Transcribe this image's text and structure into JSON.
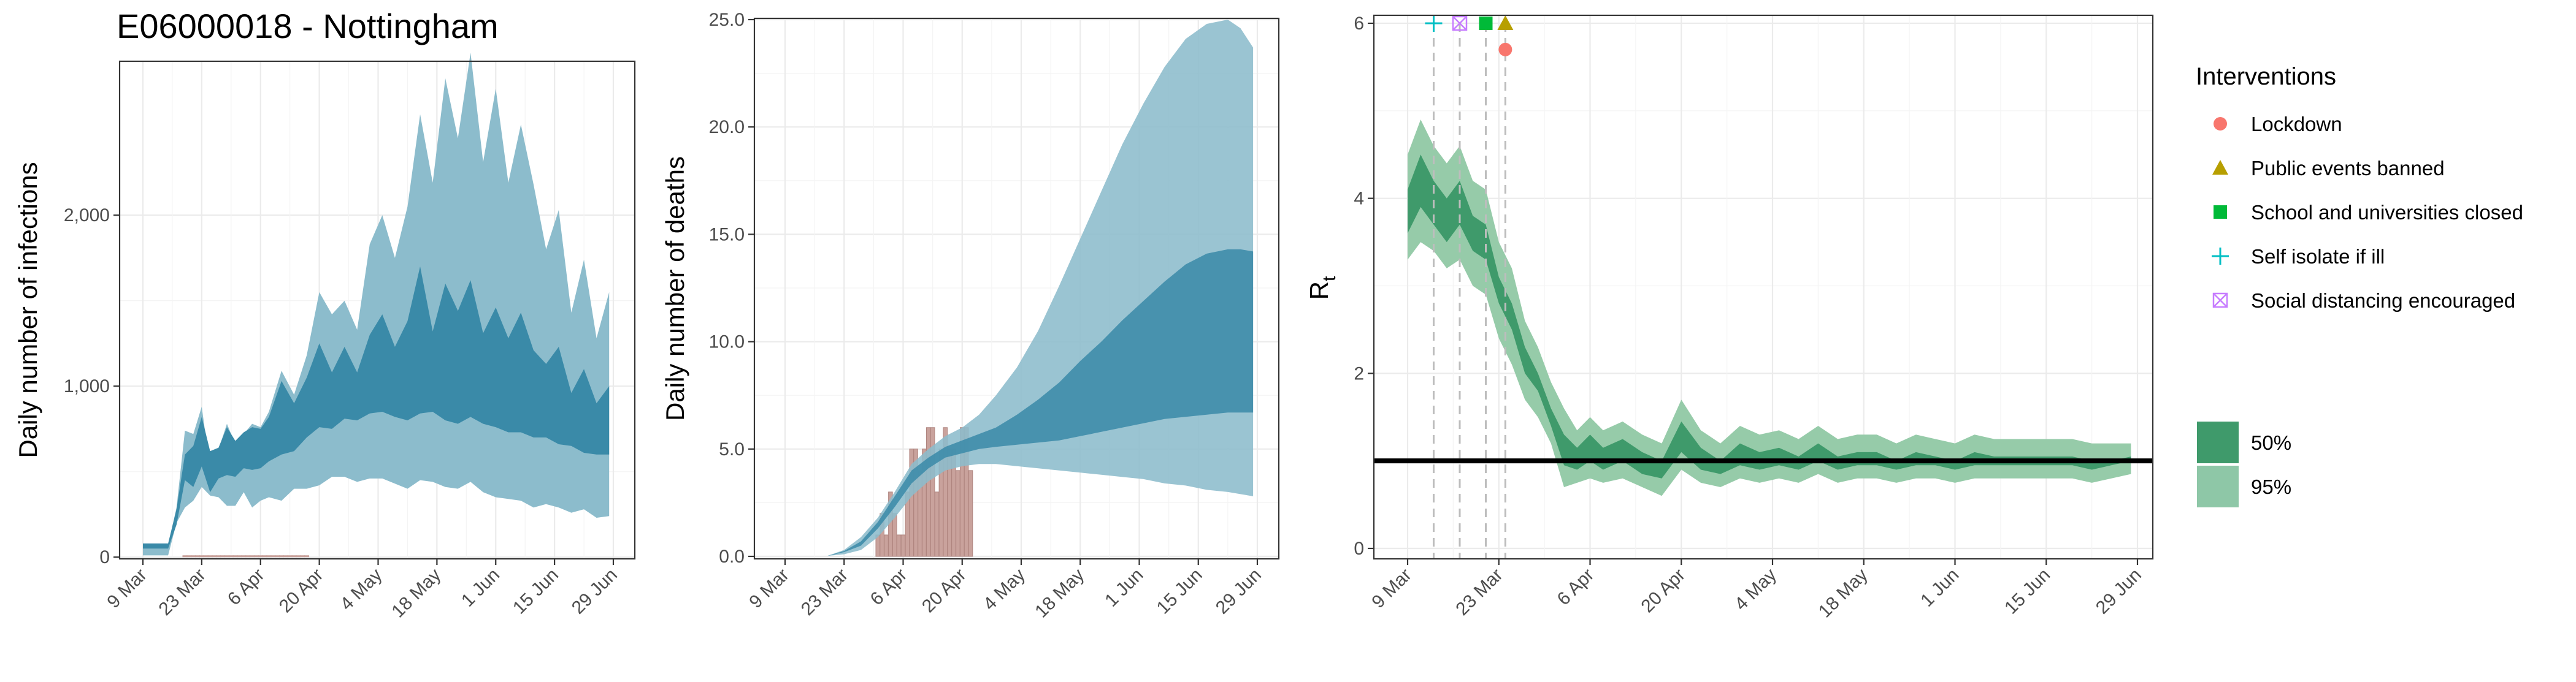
{
  "figure_title": "E06000018 - Nottingham",
  "chart_data": [
    {
      "type": "area",
      "ylabel": "Daily number of infections",
      "xlabel": "",
      "x_ticks": [
        "9 Mar",
        "23 Mar",
        "6 Apr",
        "20 Apr",
        "4 May",
        "18 May",
        "1 Jun",
        "15 Jun",
        "29 Jun"
      ],
      "y_ticks": [
        "0",
        "1,000",
        "2,000"
      ],
      "ylim": [
        0,
        2900
      ],
      "grid": true,
      "series": [
        {
          "x": [
            0,
            3,
            6,
            8,
            10,
            12,
            14,
            16,
            18,
            20,
            22,
            24,
            26,
            28,
            30,
            33,
            36,
            39,
            42,
            45,
            48,
            51,
            54,
            57,
            60,
            63,
            66,
            69,
            72,
            75,
            78,
            81,
            84,
            87,
            90,
            93,
            96,
            99,
            102,
            105,
            108,
            111
          ],
          "lower95": [
            10,
            10,
            10,
            200,
            290,
            330,
            410,
            360,
            350,
            300,
            300,
            380,
            290,
            330,
            350,
            330,
            400,
            400,
            420,
            470,
            470,
            440,
            460,
            460,
            430,
            400,
            450,
            440,
            410,
            400,
            440,
            380,
            350,
            340,
            330,
            290,
            310,
            290,
            260,
            280,
            230,
            240
          ],
          "upper95": [
            70,
            70,
            70,
            290,
            740,
            720,
            880,
            520,
            630,
            780,
            660,
            720,
            780,
            760,
            850,
            1090,
            950,
            1180,
            1550,
            1420,
            1500,
            1330,
            1830,
            2000,
            1750,
            2050,
            2590,
            2190,
            2800,
            2450,
            2950,
            2310,
            2740,
            2190,
            2530,
            2180,
            1800,
            2030,
            1430,
            1740,
            1280,
            1550
          ]
        },
        {
          "x": [
            0,
            3,
            6,
            8,
            10,
            12,
            14,
            16,
            18,
            20,
            22,
            24,
            26,
            28,
            30,
            33,
            36,
            39,
            42,
            45,
            48,
            51,
            54,
            57,
            60,
            63,
            66,
            69,
            72,
            75,
            78,
            81,
            84,
            87,
            90,
            93,
            96,
            99,
            102,
            105,
            108,
            111
          ],
          "lower50": [
            50,
            50,
            50,
            190,
            450,
            410,
            530,
            380,
            460,
            480,
            470,
            520,
            510,
            520,
            560,
            600,
            620,
            700,
            760,
            750,
            810,
            800,
            840,
            850,
            820,
            800,
            840,
            850,
            800,
            780,
            820,
            780,
            760,
            730,
            730,
            700,
            700,
            660,
            650,
            610,
            600,
            600
          ],
          "upper50": [
            80,
            80,
            80,
            280,
            600,
            650,
            820,
            620,
            640,
            760,
            680,
            730,
            760,
            750,
            820,
            1030,
            900,
            1050,
            1250,
            1080,
            1230,
            1080,
            1300,
            1420,
            1230,
            1380,
            1700,
            1320,
            1600,
            1440,
            1620,
            1310,
            1460,
            1280,
            1430,
            1210,
            1130,
            1230,
            960,
            1100,
            900,
            1000
          ]
        },
        {
          "name": "observed",
          "type": "bar",
          "x": [
            10,
            11,
            12,
            13,
            14,
            15,
            16,
            17,
            18,
            19,
            20,
            21,
            22,
            23,
            24,
            25,
            26,
            27,
            28,
            29,
            30,
            31,
            32,
            33,
            34,
            35,
            36,
            37,
            38,
            39
          ],
          "values": [
            0,
            0,
            0,
            0,
            0,
            0,
            0,
            0,
            0,
            0,
            0,
            0,
            0,
            0,
            0,
            0,
            0,
            0,
            0,
            0,
            0,
            0,
            0,
            0,
            0,
            0,
            0,
            0,
            0,
            0
          ]
        }
      ]
    },
    {
      "type": "bar",
      "ylabel": "Daily number of deaths",
      "xlabel": "",
      "x_ticks": [
        "9 Mar",
        "23 Mar",
        "6 Apr",
        "20 Apr",
        "4 May",
        "18 May",
        "1 Jun",
        "15 Jun",
        "29 Jun"
      ],
      "y_ticks": [
        "0.0",
        "5.0",
        "10.0",
        "15.0",
        "20.0",
        "25.0"
      ],
      "ylim": [
        0,
        25
      ],
      "grid": true,
      "observed_deaths": {
        "x": [
          21,
          22,
          23,
          24,
          25,
          26,
          27,
          28,
          29,
          30,
          31,
          32,
          33,
          34,
          35,
          36,
          37,
          38,
          39,
          40,
          41,
          42,
          43,
          44
        ],
        "values": [
          0,
          1,
          2,
          1,
          3,
          2,
          1,
          1,
          3,
          5,
          5,
          4,
          5,
          6,
          6,
          3,
          5,
          6,
          5,
          5,
          4,
          6,
          6,
          4
        ]
      },
      "series": [
        {
          "name": "95% band",
          "x": [
            0,
            10,
            14,
            18,
            22,
            26,
            30,
            34,
            38,
            42,
            46,
            50,
            55,
            60,
            65,
            70,
            75,
            80,
            85,
            90,
            95,
            100,
            105,
            108,
            111
          ],
          "lower": [
            0,
            0.02,
            0.1,
            0.3,
            0.9,
            1.8,
            2.8,
            3.5,
            4.0,
            4.2,
            4.3,
            4.3,
            4.2,
            4.1,
            4.0,
            3.9,
            3.8,
            3.7,
            3.6,
            3.4,
            3.3,
            3.1,
            3.0,
            2.9,
            2.8
          ],
          "upper": [
            0,
            0.02,
            0.3,
            0.9,
            1.8,
            3.0,
            4.3,
            5.0,
            5.6,
            6.0,
            6.6,
            7.5,
            8.8,
            10.5,
            12.6,
            14.8,
            17.0,
            19.2,
            21.1,
            22.8,
            24.1,
            24.8,
            25.0,
            24.6,
            23.7
          ]
        },
        {
          "name": "50% band",
          "x": [
            0,
            10,
            14,
            18,
            22,
            26,
            30,
            34,
            38,
            42,
            46,
            50,
            55,
            60,
            65,
            70,
            75,
            80,
            85,
            90,
            95,
            100,
            105,
            108,
            111
          ],
          "lower": [
            0,
            0.02,
            0.2,
            0.5,
            1.3,
            2.3,
            3.4,
            4.1,
            4.6,
            4.8,
            5.0,
            5.1,
            5.2,
            5.3,
            5.4,
            5.6,
            5.8,
            6.0,
            6.2,
            6.4,
            6.5,
            6.6,
            6.7,
            6.7,
            6.7
          ],
          "upper": [
            0,
            0.02,
            0.25,
            0.7,
            1.6,
            2.8,
            4.0,
            4.6,
            5.1,
            5.4,
            5.7,
            6.0,
            6.6,
            7.3,
            8.1,
            9.1,
            10.0,
            11.0,
            11.9,
            12.8,
            13.6,
            14.1,
            14.3,
            14.3,
            14.2
          ]
        }
      ]
    },
    {
      "type": "area",
      "ylabel": "R",
      "ylabel_subscript": "t",
      "xlabel": "",
      "x_ticks": [
        "9 Mar",
        "23 Mar",
        "6 Apr",
        "20 Apr",
        "4 May",
        "18 May",
        "1 Jun",
        "15 Jun",
        "29 Jun"
      ],
      "y_ticks": [
        "0",
        "2",
        "4",
        "6"
      ],
      "ylim": [
        0,
        6
      ],
      "reference_line": 1,
      "grid": true,
      "series": [
        {
          "name": "95%",
          "x": [
            0,
            2,
            4,
            6,
            8,
            10,
            12,
            14,
            16,
            18,
            20,
            22,
            24,
            26,
            28,
            30,
            33,
            36,
            39,
            42,
            45,
            48,
            51,
            54,
            57,
            60,
            63,
            66,
            69,
            72,
            75,
            78,
            81,
            84,
            87,
            90,
            93,
            96,
            99,
            102,
            105,
            108,
            111
          ],
          "lower": [
            3.3,
            3.5,
            3.4,
            3.2,
            3.3,
            3.0,
            2.9,
            2.4,
            2.1,
            1.7,
            1.5,
            1.2,
            0.7,
            0.75,
            0.8,
            0.75,
            0.8,
            0.7,
            0.6,
            0.9,
            0.75,
            0.7,
            0.8,
            0.75,
            0.8,
            0.75,
            0.85,
            0.75,
            0.8,
            0.8,
            0.75,
            0.8,
            0.8,
            0.75,
            0.8,
            0.8,
            0.8,
            0.8,
            0.8,
            0.8,
            0.75,
            0.8,
            0.85
          ],
          "upper": [
            4.5,
            4.9,
            4.6,
            4.4,
            4.6,
            4.2,
            4.1,
            3.5,
            3.2,
            2.6,
            2.3,
            1.9,
            1.6,
            1.35,
            1.5,
            1.35,
            1.45,
            1.3,
            1.2,
            1.7,
            1.35,
            1.2,
            1.4,
            1.3,
            1.35,
            1.25,
            1.4,
            1.25,
            1.3,
            1.3,
            1.2,
            1.3,
            1.25,
            1.2,
            1.3,
            1.25,
            1.25,
            1.25,
            1.25,
            1.25,
            1.2,
            1.2,
            1.2
          ]
        },
        {
          "name": "50%",
          "x": [
            0,
            2,
            4,
            6,
            8,
            10,
            12,
            14,
            16,
            18,
            20,
            22,
            24,
            26,
            28,
            30,
            33,
            36,
            39,
            42,
            45,
            48,
            51,
            54,
            57,
            60,
            63,
            66,
            69,
            72,
            75,
            78,
            81,
            84,
            87,
            90,
            93,
            96,
            99,
            102,
            105,
            108,
            111
          ],
          "lower": [
            3.6,
            3.9,
            3.7,
            3.5,
            3.7,
            3.4,
            3.3,
            2.8,
            2.5,
            2.0,
            1.8,
            1.4,
            0.95,
            0.9,
            1.0,
            0.9,
            1.0,
            0.85,
            0.8,
            1.1,
            0.9,
            0.85,
            0.95,
            0.9,
            0.95,
            0.9,
            1.0,
            0.9,
            0.95,
            0.95,
            0.9,
            0.95,
            0.95,
            0.9,
            0.95,
            0.95,
            0.95,
            0.95,
            0.95,
            0.95,
            0.9,
            0.95,
            1.0
          ],
          "upper": [
            4.1,
            4.5,
            4.2,
            4.0,
            4.2,
            3.8,
            3.7,
            3.1,
            2.8,
            2.3,
            2.0,
            1.6,
            1.3,
            1.15,
            1.3,
            1.15,
            1.25,
            1.1,
            1.0,
            1.45,
            1.15,
            1.0,
            1.2,
            1.1,
            1.15,
            1.05,
            1.2,
            1.05,
            1.1,
            1.1,
            1.0,
            1.1,
            1.05,
            1.0,
            1.1,
            1.05,
            1.05,
            1.05,
            1.05,
            1.05,
            1.0,
            1.0,
            1.05
          ]
        }
      ],
      "interventions": [
        {
          "name": "Self isolate if ill",
          "x": 4,
          "symbol": "plus",
          "y": 6.0,
          "color": "#00BFC4"
        },
        {
          "name": "Social distancing encouraged",
          "x": 8,
          "symbol": "square-x",
          "y": 6.0,
          "color": "#C77CFF"
        },
        {
          "name": "School and universities closed",
          "x": 12,
          "symbol": "square",
          "y": 6.0,
          "color": "#00BA38"
        },
        {
          "name": "Public events banned",
          "x": 15,
          "symbol": "triangle",
          "y": 6.0,
          "color": "#B79F00"
        },
        {
          "name": "Lockdown",
          "x": 15,
          "symbol": "circle",
          "y": 5.7,
          "color": "#F8766D"
        }
      ]
    }
  ],
  "legend": {
    "title": "Interventions",
    "items": [
      {
        "label": "Lockdown",
        "symbol": "circle",
        "color": "#F8766D"
      },
      {
        "label": "Public events banned",
        "symbol": "triangle",
        "color": "#B79F00"
      },
      {
        "label": "School and universities closed",
        "symbol": "square",
        "color": "#00BA38"
      },
      {
        "label": "Self isolate if ill",
        "symbol": "plus",
        "color": "#00BFC4"
      },
      {
        "label": "Social distancing encouraged",
        "symbol": "square-x",
        "color": "#C77CFF"
      }
    ],
    "bands": [
      {
        "label": "50%",
        "color": "#3f9a6b"
      },
      {
        "label": "95%",
        "color": "#8ec7a7"
      }
    ]
  },
  "colors": {
    "infection_band95": "#8cbccc",
    "infection_band50": "#3a8aa8",
    "death_bar": "#c9a29c",
    "rt_band95": "#96cba9",
    "rt_band50": "#3f9a6b"
  }
}
